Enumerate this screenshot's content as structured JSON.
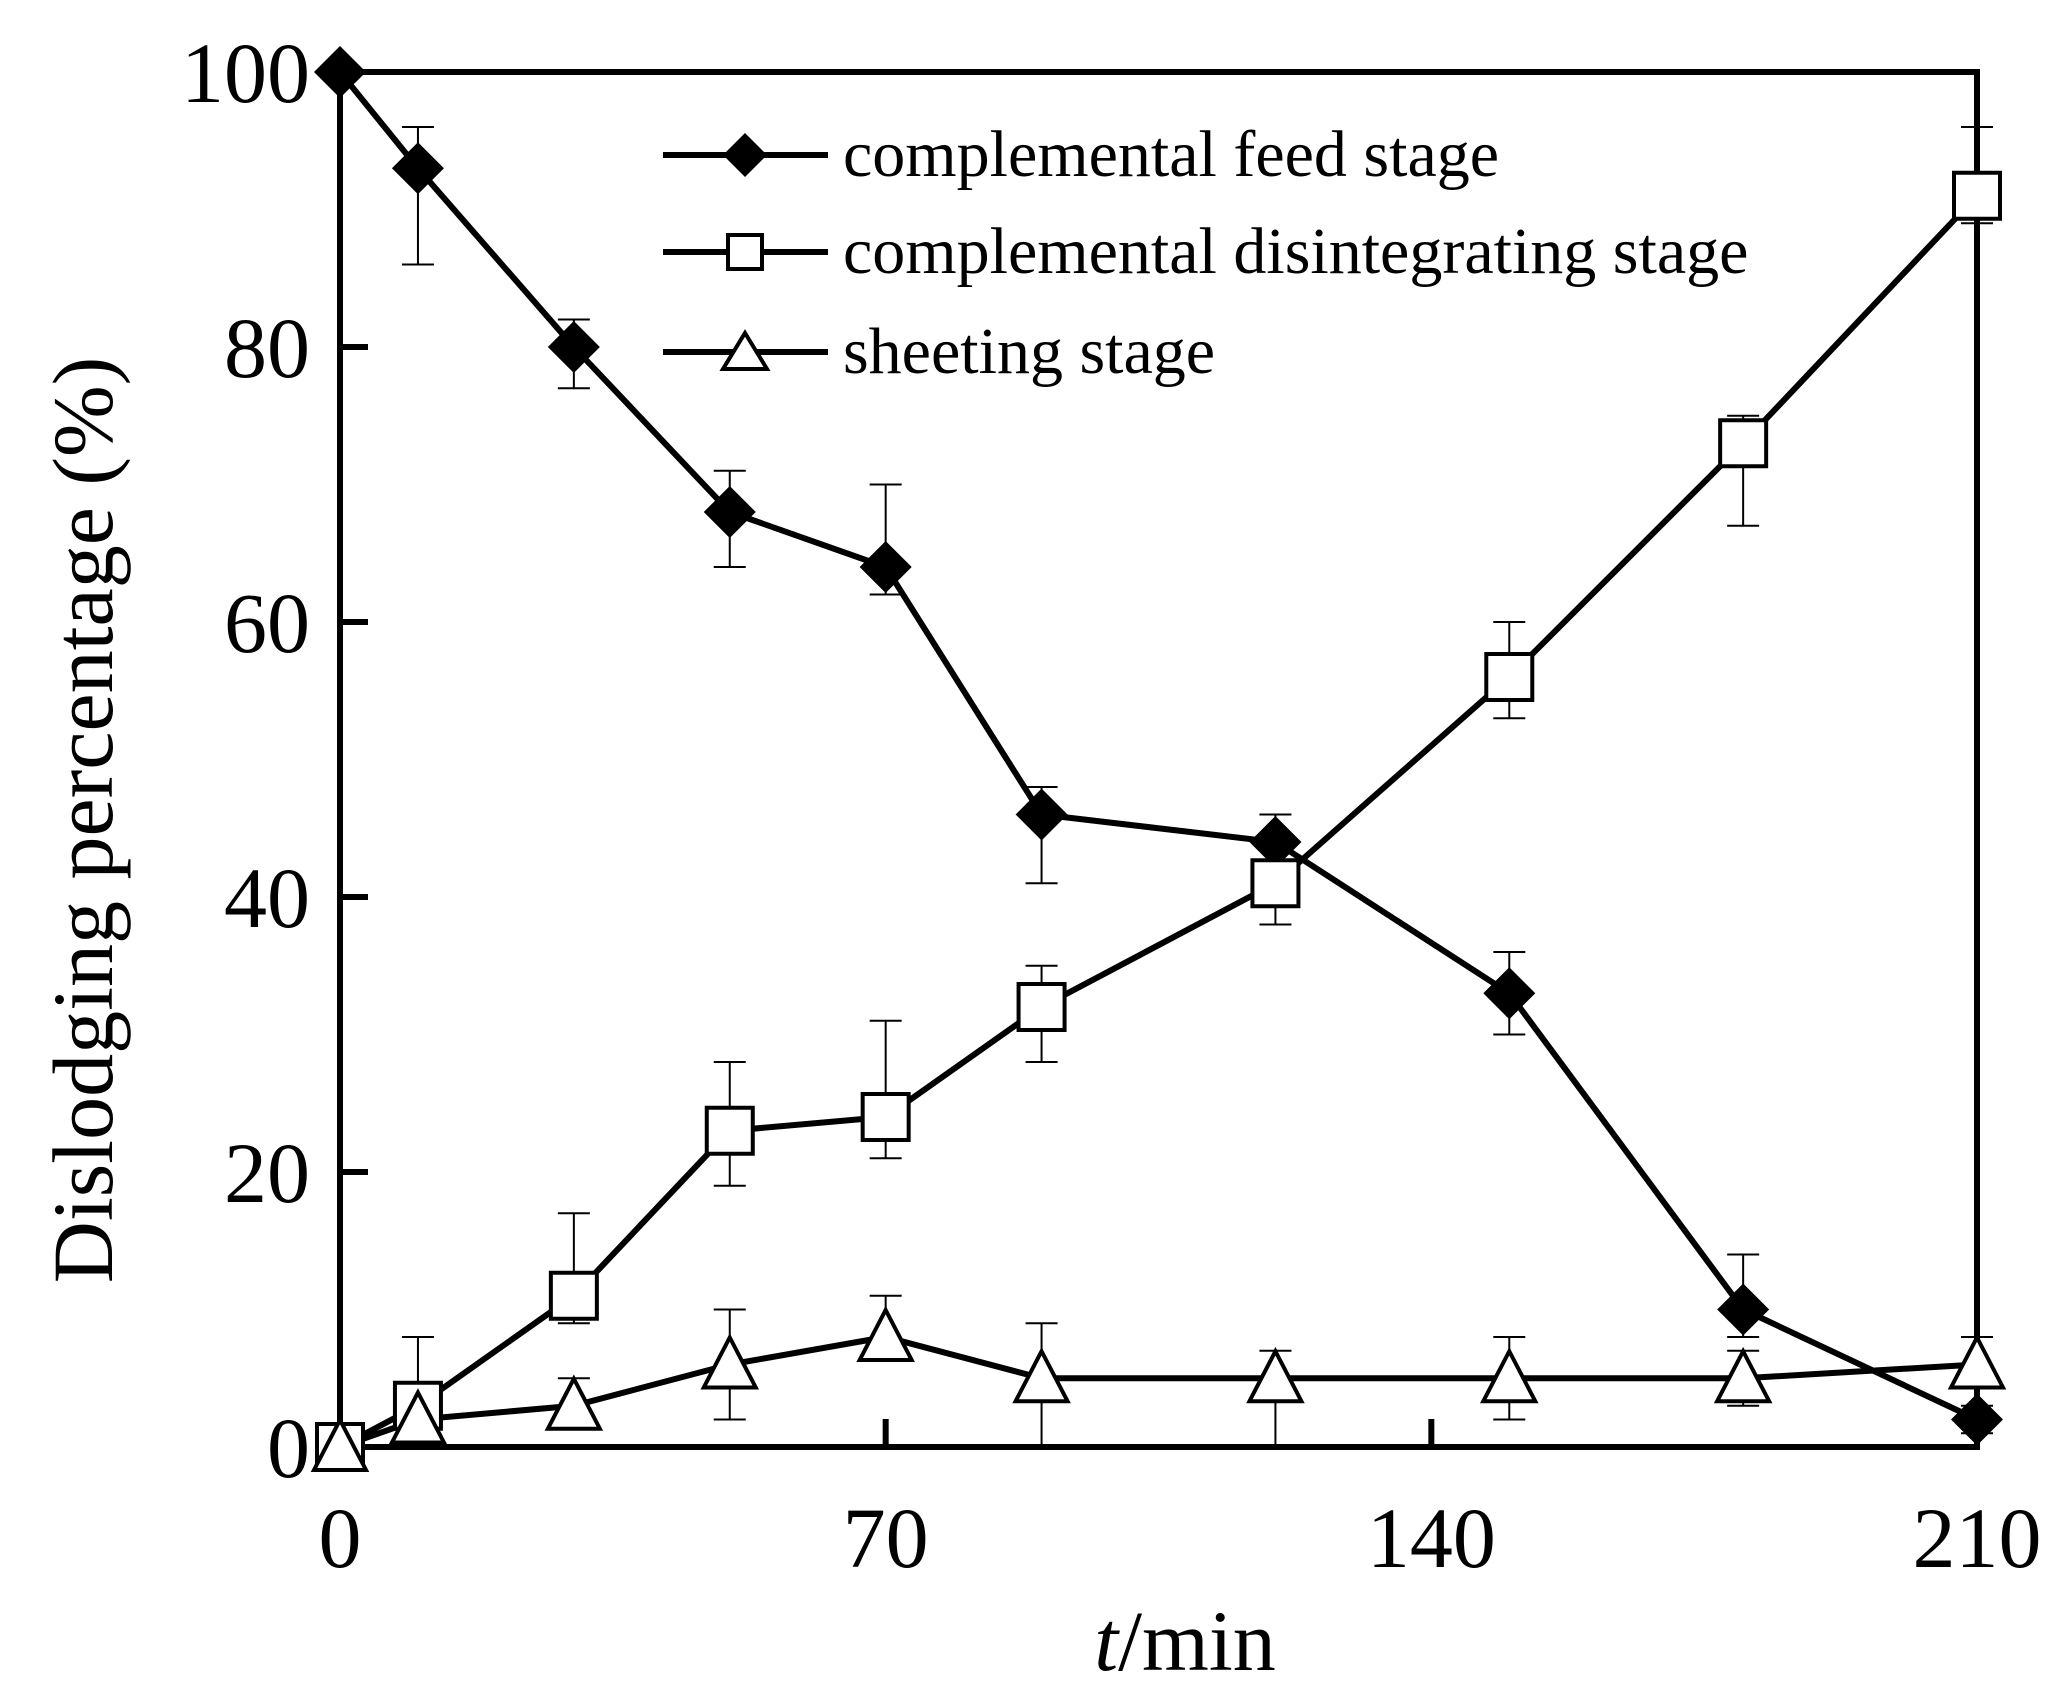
{
  "chart_data": {
    "type": "line",
    "title": "",
    "xlabel_italic": "t",
    "xlabel_rest": "/min",
    "ylabel": "Dislodging percentage (%)",
    "xlim": [
      0,
      210
    ],
    "ylim": [
      0,
      100
    ],
    "xticks": [
      0,
      70,
      140,
      210
    ],
    "xtick_labels": [
      "0",
      "70",
      "140",
      "210"
    ],
    "yticks": [
      0,
      20,
      40,
      60,
      80,
      100
    ],
    "ytick_labels": [
      "0",
      "20",
      "40",
      "60",
      "80",
      "100"
    ],
    "grid": false,
    "legend_position": "top-center",
    "x": [
      0,
      10,
      30,
      50,
      70,
      90,
      120,
      150,
      180,
      210
    ],
    "series": [
      {
        "name": "complemental feed stage",
        "marker": "filled-diamond",
        "values": [
          100,
          93,
          80,
          68,
          64,
          46,
          44,
          33,
          10,
          2
        ],
        "err_low": [
          100,
          86,
          77,
          64,
          62,
          41,
          40,
          30,
          8,
          1
        ],
        "err_high": [
          100,
          96,
          82,
          71,
          70,
          48,
          46,
          36,
          14,
          3
        ]
      },
      {
        "name": "complemental disintegrating stage",
        "marker": "open-square",
        "values": [
          0,
          3,
          11,
          23,
          24,
          32,
          41,
          56,
          73,
          91
        ],
        "err_low": [
          0,
          1,
          9,
          19,
          21,
          28,
          38,
          53,
          67,
          89
        ],
        "err_high": [
          0,
          8,
          17,
          28,
          31,
          35,
          44,
          60,
          75,
          96
        ]
      },
      {
        "name": "sheeting stage",
        "marker": "open-triangle",
        "values": [
          0,
          2,
          3,
          6,
          8,
          5,
          5,
          5,
          5,
          6
        ],
        "err_low": [
          0,
          1,
          2,
          2,
          7,
          0,
          0,
          2,
          3,
          5
        ],
        "err_high": [
          0,
          3,
          5,
          10,
          11,
          9,
          7,
          8,
          7,
          8
        ]
      }
    ]
  }
}
